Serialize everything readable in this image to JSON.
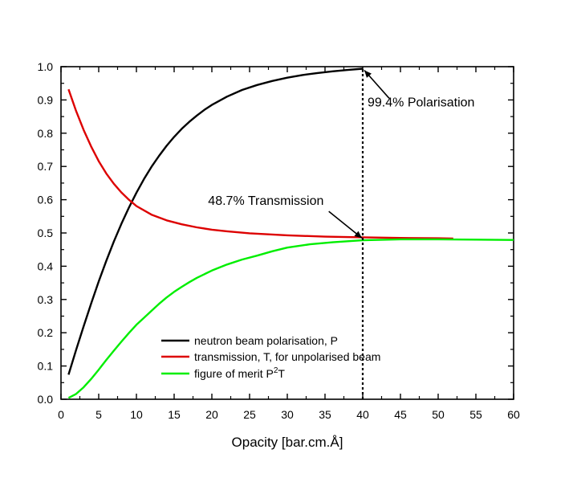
{
  "chart_data": {
    "type": "line",
    "title": "",
    "xlabel": "Opacity [bar.cm.Å]",
    "ylabel": "",
    "xlim": [
      0,
      60
    ],
    "ylim": [
      0.0,
      1.0
    ],
    "x_ticks": [
      0,
      5,
      10,
      15,
      20,
      25,
      30,
      35,
      40,
      45,
      50,
      55,
      60
    ],
    "y_ticks": [
      0.0,
      0.1,
      0.2,
      0.3,
      0.4,
      0.5,
      0.6,
      0.7,
      0.8,
      0.9,
      1.0
    ],
    "x_tick_labels": [
      "0",
      "5",
      "10",
      "15",
      "20",
      "25",
      "30",
      "35",
      "40",
      "45",
      "50",
      "55",
      "60"
    ],
    "y_tick_labels": [
      "0.0",
      "0.1",
      "0.2",
      "0.3",
      "0.4",
      "0.5",
      "0.6",
      "0.7",
      "0.8",
      "0.9",
      "1.0"
    ],
    "grid": false,
    "legend_position": "bottom-center",
    "series": [
      {
        "name": "neutron beam polarisation, P",
        "legend_label": "neutron beam polarisation, P",
        "color": "#000000",
        "x": [
          1,
          2,
          3,
          4,
          5,
          6,
          7,
          8,
          9,
          10,
          11,
          12,
          13,
          14,
          15,
          16,
          17,
          18,
          19,
          20,
          22,
          24,
          26,
          28,
          30,
          32,
          34,
          36,
          38,
          40
        ],
        "values": [
          0.074,
          0.148,
          0.219,
          0.288,
          0.354,
          0.416,
          0.474,
          0.527,
          0.576,
          0.621,
          0.662,
          0.699,
          0.732,
          0.762,
          0.789,
          0.813,
          0.834,
          0.853,
          0.87,
          0.885,
          0.91,
          0.93,
          0.945,
          0.957,
          0.967,
          0.975,
          0.981,
          0.986,
          0.99,
          0.994
        ]
      },
      {
        "name": "transmission, T, for unpolarised beam",
        "legend_label": "transmission, T, for unpolarised beam",
        "color": "#dd0000",
        "x": [
          1,
          2,
          3,
          4,
          5,
          6,
          7,
          8,
          9,
          10,
          12,
          14,
          16,
          18,
          20,
          22,
          25,
          30,
          35,
          40,
          45,
          50,
          52
        ],
        "values": [
          0.932,
          0.867,
          0.81,
          0.76,
          0.716,
          0.679,
          0.648,
          0.622,
          0.6,
          0.581,
          0.555,
          0.538,
          0.526,
          0.517,
          0.51,
          0.505,
          0.499,
          0.493,
          0.489,
          0.487,
          0.485,
          0.484,
          0.483
        ]
      },
      {
        "name": "figure of merit P²T",
        "legend_label": "figure of merit P",
        "legend_sup": "2",
        "legend_suffix": "T",
        "color": "#00ee00",
        "x": [
          1,
          2,
          3,
          4,
          5,
          6,
          7,
          8,
          9,
          10,
          11,
          12,
          13,
          14,
          15,
          16,
          17,
          18,
          20,
          22,
          24,
          26,
          28,
          30,
          33,
          36,
          40,
          45,
          50,
          55,
          60
        ],
        "values": [
          0.004,
          0.016,
          0.036,
          0.061,
          0.089,
          0.118,
          0.146,
          0.173,
          0.199,
          0.224,
          0.245,
          0.266,
          0.287,
          0.306,
          0.323,
          0.338,
          0.352,
          0.365,
          0.387,
          0.405,
          0.42,
          0.432,
          0.445,
          0.456,
          0.466,
          0.472,
          0.478,
          0.481,
          0.481,
          0.48,
          0.479
        ]
      }
    ],
    "annotations": [
      {
        "text": "99.4% Polarisation",
        "x": 40,
        "y": 0.994
      },
      {
        "text": "48.7% Transmission",
        "x": 40,
        "y": 0.487
      }
    ],
    "reference_line": {
      "x": 40,
      "style": "dotted"
    }
  }
}
